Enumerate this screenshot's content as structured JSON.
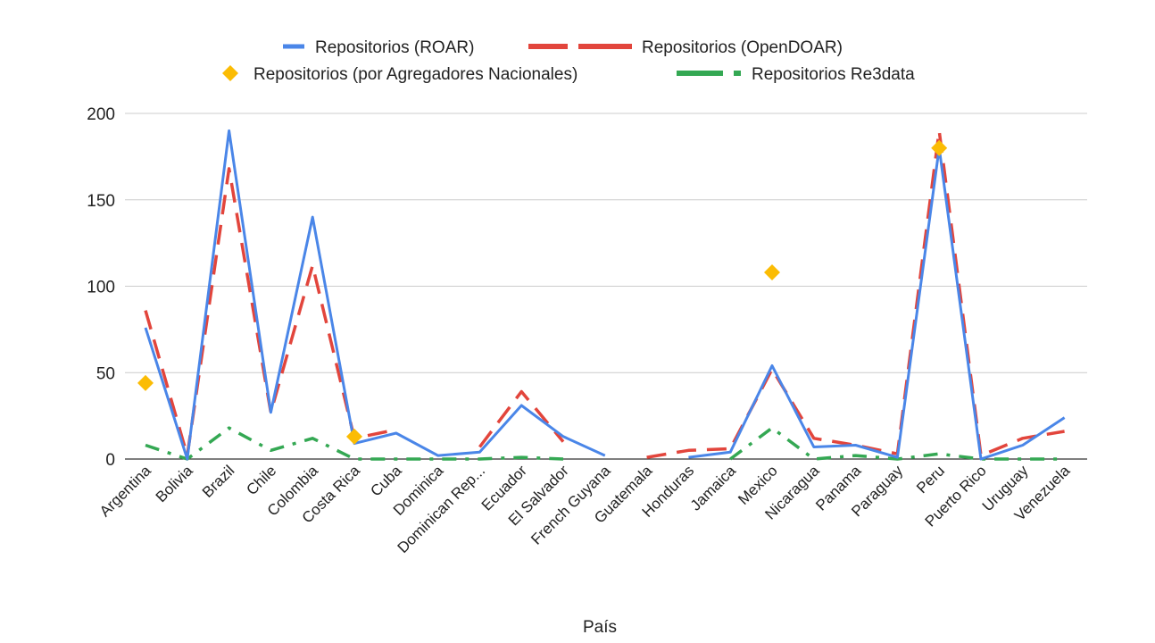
{
  "chart_data": {
    "type": "line",
    "xlabel": "País",
    "ylabel": "",
    "ylim": [
      0,
      200
    ],
    "yticks": [
      0,
      50,
      100,
      150,
      200
    ],
    "grid": true,
    "legend_position": "top",
    "categories": [
      "Argentina",
      "Bolivia",
      "Brazil",
      "Chile",
      "Colombia",
      "Costa Rica",
      "Cuba",
      "Dominica",
      "Dominican Rep...",
      "Ecuador",
      "El Salvador",
      "French Guyana",
      "Guatemala",
      "Honduras",
      "Jamaica",
      "Mexico",
      "Nicaragua",
      "Panama",
      "Paraguay",
      "Peru",
      "Puerto Rico",
      "Uruguay",
      "Venezuela"
    ],
    "series": [
      {
        "name": "Repositorios (ROAR)",
        "style": "solid",
        "color": "#4a86e8",
        "values": [
          76,
          0,
          190,
          27,
          140,
          9,
          15,
          2,
          4,
          31,
          13,
          2,
          null,
          1,
          4,
          54,
          7,
          8,
          1,
          180,
          0,
          8,
          24
        ]
      },
      {
        "name": "Repositorios (OpenDOAR)",
        "style": "dashed",
        "color": "#e2453c",
        "values": [
          86,
          2,
          168,
          27,
          112,
          12,
          17,
          null,
          7,
          39,
          10,
          null,
          1,
          5,
          6,
          52,
          12,
          8,
          3,
          190,
          2,
          12,
          16
        ]
      },
      {
        "name": "Repositorios (por Agregadores Nacionales)",
        "style": "markers",
        "color": "#fbbc04",
        "values": [
          44,
          null,
          null,
          null,
          null,
          13,
          null,
          null,
          null,
          null,
          null,
          null,
          null,
          null,
          null,
          108,
          null,
          null,
          null,
          180,
          null,
          null,
          null
        ]
      },
      {
        "name": "Repositorios Re3data",
        "style": "dashdot",
        "color": "#34a853",
        "values": [
          8,
          0,
          18,
          5,
          12,
          0,
          0,
          0,
          0,
          1,
          0,
          null,
          0,
          null,
          0,
          18,
          0,
          2,
          0,
          3,
          0,
          0,
          0
        ]
      }
    ]
  }
}
